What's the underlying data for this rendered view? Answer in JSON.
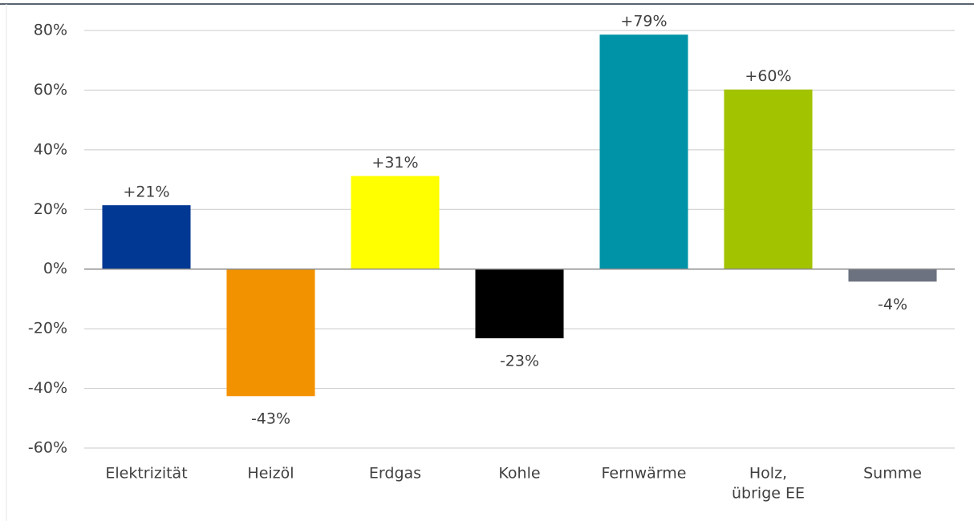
{
  "chart_data": {
    "type": "bar",
    "categories": [
      "Elektrizität",
      "Heizöl",
      "Erdgas",
      "Kohle",
      "Fernwärme",
      [
        "Holz,",
        "übrige EE"
      ],
      "Summe"
    ],
    "values": [
      21.4,
      -42.6,
      31.2,
      -23.2,
      78.6,
      60.2,
      -4.2
    ],
    "value_labels": [
      "+21%",
      "-43%",
      "+31%",
      "-23%",
      "+79%",
      "+60%",
      "-4%"
    ],
    "colors": [
      "#003893",
      "#f39200",
      "#ffff00",
      "#000000",
      "#0093a7",
      "#a2c300",
      "#6d7280"
    ],
    "ylim": [
      -60,
      80
    ],
    "yticks": [
      {
        "value": -60,
        "label": "-60%"
      },
      {
        "value": -40,
        "label": "-40%"
      },
      {
        "value": -20,
        "label": "-20%"
      },
      {
        "value": 0,
        "label": "0%"
      },
      {
        "value": 20,
        "label": "20%"
      },
      {
        "value": 40,
        "label": "40%"
      },
      {
        "value": 60,
        "label": "60%"
      },
      {
        "value": 80,
        "label": "80%"
      }
    ],
    "grid": true
  }
}
